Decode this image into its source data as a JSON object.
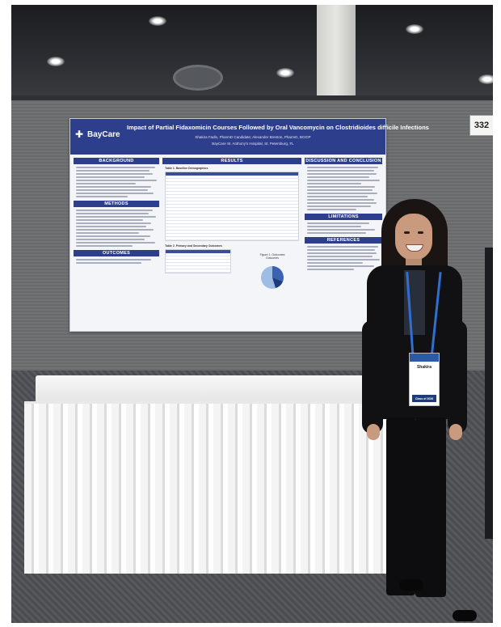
{
  "board": {
    "number": "332"
  },
  "poster": {
    "brand": "BayCare",
    "title": "Impact of Partial Fidaxomicin Courses Followed by Oral Vancomycin on Clostridioides difficile Infections",
    "authors": "Shakira Fadlo, PharmD Candidate; Alexander Brenton, PharmD, BCIDP",
    "affiliation": "BayCare St. Anthony's Hospital, St. Petersburg, FL",
    "sections": {
      "background": "BACKGROUND",
      "methods": "METHODS",
      "outcomes": "OUTCOMES",
      "results": "RESULTS",
      "discussion": "DISCUSSION AND CONCLUSION",
      "limitations": "LIMITATIONS",
      "references": "REFERENCES"
    },
    "table1_caption": "Table 1. Baseline Demographics",
    "table2_caption": "Table 2. Primary and Secondary Outcomes",
    "figure_caption": "Figure 1. Outcomes",
    "pie_title": "Outcomes"
  },
  "badge": {
    "name": "Shakira",
    "ribbon": "Class of 2026"
  },
  "colors": {
    "poster_blue": "#2d3e8c",
    "lanyard_blue": "#2f6fd0"
  }
}
